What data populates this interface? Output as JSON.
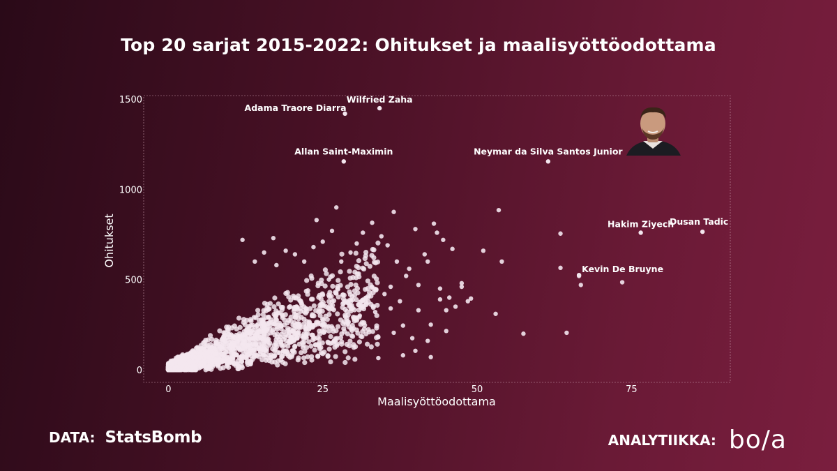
{
  "title": "Top 20 sarjat 2015-2022: Ohitukset ja maalisyöttöodottama",
  "footer": {
    "data_label": "DATA:",
    "data_source": "StatsBomb",
    "analytics_label": "ANALYTIIKKA:",
    "analytics_brand": "bo/a"
  },
  "colors": {
    "point": "#f3e6ee",
    "background_start": "#2a0a18",
    "background_end": "#7a1e3e"
  },
  "icons": {
    "player_photo": "player-portrait-icon"
  },
  "chart_data": {
    "type": "scatter",
    "title": "Top 20 sarjat 2015-2022: Ohitukset ja maalisyöttöodottama",
    "xlabel": "Maalisyöttöodottama",
    "ylabel": "Ohitukset",
    "xlim": [
      -4,
      91
    ],
    "ylim": [
      -70,
      1520
    ],
    "xticks": [
      0,
      25,
      50,
      75
    ],
    "yticks": [
      0,
      500,
      1000,
      1500
    ],
    "grid": false,
    "annotated_points": [
      {
        "name": "Wilfried Zaha",
        "x": 34.2,
        "y": 1450
      },
      {
        "name": "Adama Traore Diarra",
        "x": 28.6,
        "y": 1420
      },
      {
        "name": "Allan Saint-Maximin",
        "x": 28.4,
        "y": 1155
      },
      {
        "name": "Neymar da Silva Santos Junior",
        "x": 61.5,
        "y": 1155
      },
      {
        "name": "Hakim Ziyech",
        "x": 76.5,
        "y": 760
      },
      {
        "name": "Dusan Tadic",
        "x": 86.5,
        "y": 765
      },
      {
        "name": "Kevin De Bruyne",
        "x": 66.5,
        "y": 525
      }
    ],
    "points": [
      [
        27.2,
        900
      ],
      [
        36.5,
        875
      ],
      [
        53.5,
        885
      ],
      [
        33.0,
        815
      ],
      [
        43.0,
        810
      ],
      [
        40.0,
        780
      ],
      [
        24.0,
        830
      ],
      [
        63.5,
        755
      ],
      [
        12.0,
        720
      ],
      [
        17.0,
        730
      ],
      [
        46.0,
        670
      ],
      [
        51.0,
        660
      ],
      [
        54.0,
        600
      ],
      [
        63.5,
        565
      ],
      [
        66.5,
        520
      ],
      [
        66.8,
        470
      ],
      [
        73.5,
        485
      ],
      [
        47.5,
        480
      ],
      [
        45.5,
        400
      ],
      [
        49.0,
        395
      ],
      [
        44.0,
        450
      ],
      [
        53.0,
        310
      ],
      [
        57.5,
        200
      ],
      [
        64.5,
        205
      ],
      [
        42.5,
        250
      ],
      [
        45.0,
        215
      ],
      [
        38.0,
        245
      ],
      [
        39.5,
        175
      ],
      [
        42.0,
        160
      ],
      [
        34.0,
        180
      ],
      [
        36.5,
        205
      ],
      [
        40.0,
        105
      ],
      [
        38.0,
        80
      ],
      [
        42.5,
        70
      ],
      [
        34.0,
        65
      ],
      [
        30.0,
        230
      ],
      [
        33.5,
        320
      ],
      [
        36.0,
        340
      ],
      [
        31.0,
        300
      ],
      [
        29.0,
        270
      ],
      [
        35.0,
        420
      ],
      [
        38.5,
        520
      ],
      [
        40.5,
        470
      ],
      [
        42.0,
        600
      ],
      [
        43.5,
        760
      ],
      [
        44.5,
        720
      ],
      [
        41.5,
        640
      ],
      [
        39.0,
        560
      ],
      [
        37.0,
        600
      ],
      [
        35.5,
        690
      ],
      [
        34.5,
        740
      ],
      [
        31.5,
        760
      ],
      [
        30.5,
        700
      ],
      [
        29.5,
        650
      ],
      [
        28.0,
        600
      ],
      [
        26.5,
        770
      ],
      [
        25.0,
        710
      ],
      [
        23.5,
        680
      ],
      [
        22.0,
        600
      ],
      [
        20.5,
        640
      ],
      [
        19.0,
        660
      ],
      [
        17.5,
        580
      ],
      [
        15.5,
        650
      ],
      [
        14.0,
        600
      ],
      [
        27.0,
        430
      ],
      [
        26.0,
        500
      ],
      [
        28.5,
        380
      ],
      [
        32.0,
        400
      ],
      [
        33.0,
        460
      ],
      [
        36.0,
        460
      ],
      [
        37.5,
        380
      ],
      [
        40.5,
        330
      ],
      [
        46.5,
        350
      ],
      [
        48.5,
        380
      ],
      [
        45.0,
        330
      ],
      [
        47.5,
        460
      ],
      [
        44.0,
        390
      ]
    ],
    "cloud_note": "Dense cluster of several thousand players below x≈35 and y≈500"
  }
}
